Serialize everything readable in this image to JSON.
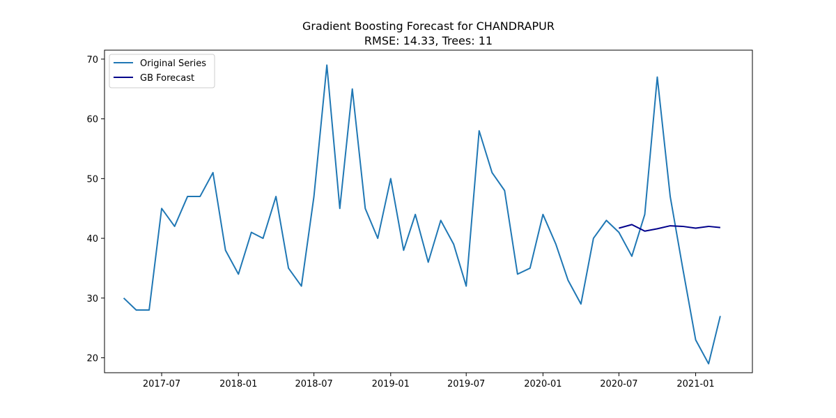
{
  "chart_data": {
    "type": "line",
    "title": "Gradient Boosting Forecast for CHANDRAPUR",
    "subtitle": "RMSE: 14.33, Trees: 11",
    "xlabel": "",
    "ylabel": "",
    "ylim": [
      17.5,
      71.5
    ],
    "xlim": [
      "2017-02-14",
      "2021-05-17"
    ],
    "grid": false,
    "legend_position": "top-left",
    "x_ticks": [
      "2017-07",
      "2018-01",
      "2018-07",
      "2019-01",
      "2019-07",
      "2020-01",
      "2020-07",
      "2021-01"
    ],
    "y_ticks": [
      20,
      30,
      40,
      50,
      60,
      70
    ],
    "series": [
      {
        "name": "Original Series",
        "color": "#1f77b4",
        "x": [
          "2017-04",
          "2017-05",
          "2017-06",
          "2017-07",
          "2017-08",
          "2017-09",
          "2017-10",
          "2017-11",
          "2017-12",
          "2018-01",
          "2018-02",
          "2018-03",
          "2018-04",
          "2018-05",
          "2018-06",
          "2018-07",
          "2018-08",
          "2018-09",
          "2018-10",
          "2018-11",
          "2018-12",
          "2019-01",
          "2019-02",
          "2019-03",
          "2019-04",
          "2019-05",
          "2019-06",
          "2019-07",
          "2019-08",
          "2019-09",
          "2019-10",
          "2019-11",
          "2019-12",
          "2020-01",
          "2020-02",
          "2020-03",
          "2020-04",
          "2020-05",
          "2020-06",
          "2020-07",
          "2020-08",
          "2020-09",
          "2020-10",
          "2020-11",
          "2020-12",
          "2021-01",
          "2021-02",
          "2021-03"
        ],
        "values": [
          30,
          28,
          28,
          45,
          42,
          47,
          47,
          51,
          38,
          34,
          41,
          40,
          47,
          35,
          32,
          47,
          69,
          45,
          65,
          45,
          40,
          50,
          38,
          44,
          36,
          43,
          39,
          32,
          58,
          51,
          48,
          34,
          35,
          44,
          39,
          33,
          29,
          40,
          43,
          41,
          37,
          44,
          67,
          47,
          35,
          23,
          19,
          27
        ]
      },
      {
        "name": "GB Forecast",
        "color": "#00008b",
        "x": [
          "2020-07",
          "2020-08",
          "2020-09",
          "2020-10",
          "2020-11",
          "2020-12",
          "2021-01",
          "2021-02",
          "2021-03"
        ],
        "values": [
          41.7,
          42.3,
          41.2,
          41.6,
          42.1,
          42.0,
          41.7,
          42.0,
          41.8
        ]
      }
    ]
  }
}
